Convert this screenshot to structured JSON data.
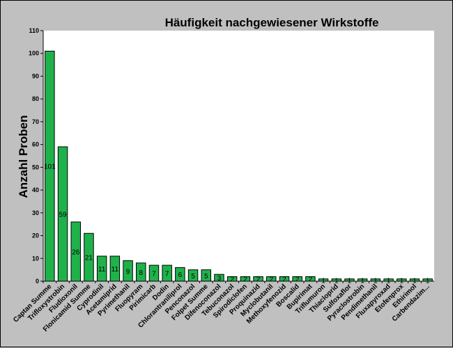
{
  "chart_data": {
    "type": "bar",
    "title": "Häufigkeit nachgewiesener Wirkstoffe",
    "xlabel": "",
    "ylabel": "Anzahl Proben",
    "ylim": [
      0,
      110
    ],
    "yticks": [
      0,
      10,
      20,
      30,
      40,
      50,
      60,
      70,
      80,
      90,
      100,
      110
    ],
    "grid": false,
    "bar_color": "#1fb24b",
    "plot_background": "#ffffff",
    "categories": [
      "Captan Summe",
      "Trifloxystrobin",
      "Fludioxonil",
      "Flonicamid Summe",
      "Cyprodinil",
      "Acetamiprid",
      "Pyrimethanil",
      "Fluopyram",
      "Pirimicarb",
      "Dodin",
      "Chlorantraniliprol",
      "Penconazol",
      "Folpet Summe",
      "Difenoconazol",
      "Tebuconazol",
      "Spirodiclofen",
      "Proquinazid",
      "Myclobutanil",
      "Methoxyfenozid",
      "Boscalid",
      "Bupirimat",
      "Triflumuron",
      "Thiacloprid",
      "Sulfoxaflor",
      "Pyraclostrobin",
      "Pendimethanil",
      "Fluxapyroxad",
      "Etofenprox",
      "Ethirimol",
      "Carbendazim..."
    ],
    "values": [
      101,
      59,
      26,
      21,
      11,
      11,
      9,
      8,
      7,
      7,
      6,
      5,
      5,
      3,
      2,
      2,
      2,
      2,
      2,
      2,
      2,
      1,
      1,
      1,
      1,
      1,
      1,
      1,
      1,
      1
    ]
  }
}
